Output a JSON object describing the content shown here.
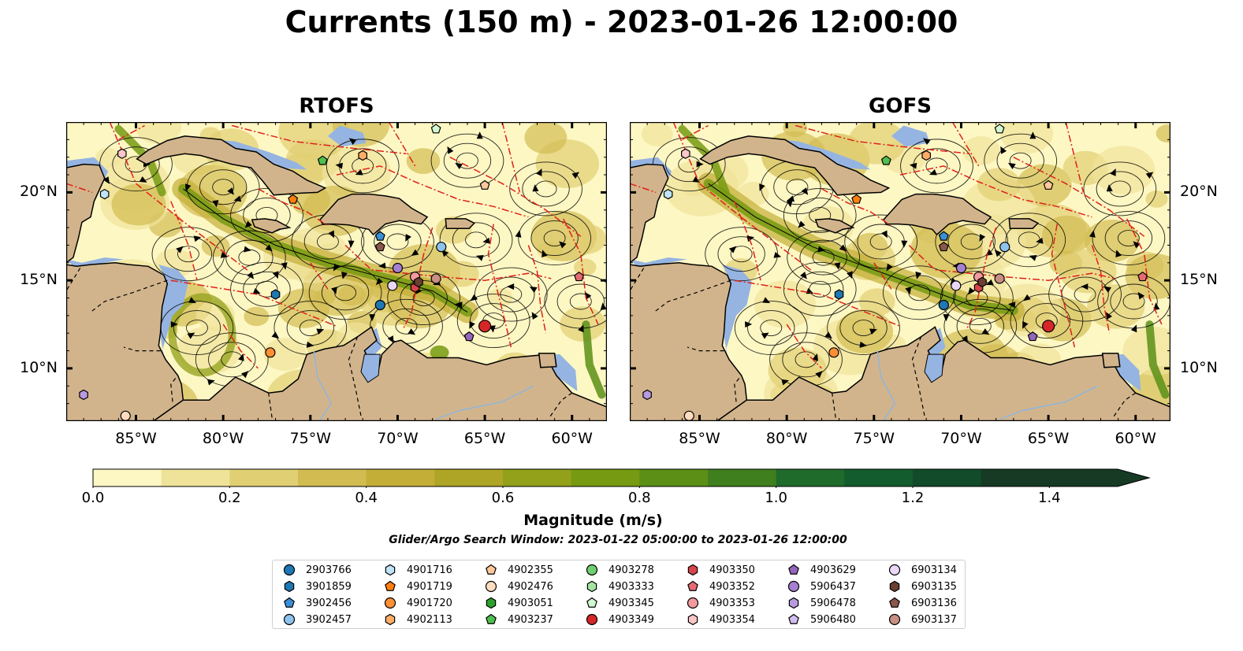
{
  "title": "Currents (150 m) - 2023-01-26 12:00:00",
  "panels": [
    {
      "id": "rtofs",
      "title": "RTOFS"
    },
    {
      "id": "gofs",
      "title": "GOFS"
    }
  ],
  "lon_labels": [
    "85°W",
    "80°W",
    "75°W",
    "70°W",
    "65°W",
    "60°W"
  ],
  "lat_labels": [
    "20°N",
    "15°N",
    "10°N"
  ],
  "colorbar": {
    "label": "Magnitude (m/s)",
    "ticks": [
      "0.0",
      "0.2",
      "0.4",
      "0.6",
      "0.8",
      "1.0",
      "1.2",
      "1.4"
    ],
    "range": [
      0,
      1.5
    ],
    "extend": "max",
    "colors": [
      "#fdf7c3",
      "#efe39a",
      "#e1cf74",
      "#d2bc52",
      "#c3ae38",
      "#aea426",
      "#92a01a",
      "#769a12",
      "#5b8f16",
      "#3f7f1d",
      "#1f6b2c",
      "#135c2e",
      "#124b2a",
      "#163a24",
      "#1a2a1b"
    ]
  },
  "map_colors": {
    "land": "#d2b48c",
    "shallow_water": "#95b4e1",
    "eez_line": "#e0201b"
  },
  "search_window": "Glider/Argo Search Window: 2023-01-22 05:00:00 to 2023-01-26 12:00:00",
  "legend": [
    {
      "id": "2903766",
      "marker": "circle",
      "color": "#1f77b4"
    },
    {
      "id": "3901859",
      "marker": "hexagon",
      "color": "#1f77b4"
    },
    {
      "id": "3902456",
      "marker": "pentagon",
      "color": "#3a8fd8"
    },
    {
      "id": "3902457",
      "marker": "circle",
      "color": "#8ec3ee"
    },
    {
      "id": "4901716",
      "marker": "hexagon",
      "color": "#bfe3f7"
    },
    {
      "id": "4901719",
      "marker": "pentagon",
      "color": "#ff7f0e"
    },
    {
      "id": "4901720",
      "marker": "circle",
      "color": "#ff8f33"
    },
    {
      "id": "4902113",
      "marker": "hexagon",
      "color": "#ffad66"
    },
    {
      "id": "4902355",
      "marker": "pentagon",
      "color": "#ffc89b"
    },
    {
      "id": "4902476",
      "marker": "circle",
      "color": "#ffdcc0"
    },
    {
      "id": "4903051",
      "marker": "hexagon",
      "color": "#2ca02c"
    },
    {
      "id": "4903237",
      "marker": "pentagon",
      "color": "#4fbf4f"
    },
    {
      "id": "4903278",
      "marker": "circle",
      "color": "#6fcf6f"
    },
    {
      "id": "4903333",
      "marker": "hexagon",
      "color": "#a3e4a3"
    },
    {
      "id": "4903345",
      "marker": "pentagon",
      "color": "#d1f7d1"
    },
    {
      "id": "4903349",
      "marker": "circle",
      "color": "#d62728"
    },
    {
      "id": "4903350",
      "marker": "hexagon",
      "color": "#d9434a"
    },
    {
      "id": "4903352",
      "marker": "pentagon",
      "color": "#e56b73"
    },
    {
      "id": "4903353",
      "marker": "circle",
      "color": "#f29a9f"
    },
    {
      "id": "4903354",
      "marker": "hexagon",
      "color": "#fbc6c8"
    },
    {
      "id": "4903629",
      "marker": "pentagon",
      "color": "#9467bd"
    },
    {
      "id": "5906437",
      "marker": "circle",
      "color": "#a57fd0"
    },
    {
      "id": "5906478",
      "marker": "hexagon",
      "color": "#b89ae0"
    },
    {
      "id": "5906480",
      "marker": "pentagon",
      "color": "#d2bdf0"
    },
    {
      "id": "6903134",
      "marker": "circle",
      "color": "#ead7f8"
    },
    {
      "id": "6903135",
      "marker": "hexagon",
      "color": "#6b3f31"
    },
    {
      "id": "6903136",
      "marker": "pentagon",
      "color": "#8c564b"
    },
    {
      "id": "6903137",
      "marker": "circle",
      "color": "#c98e84"
    }
  ]
}
